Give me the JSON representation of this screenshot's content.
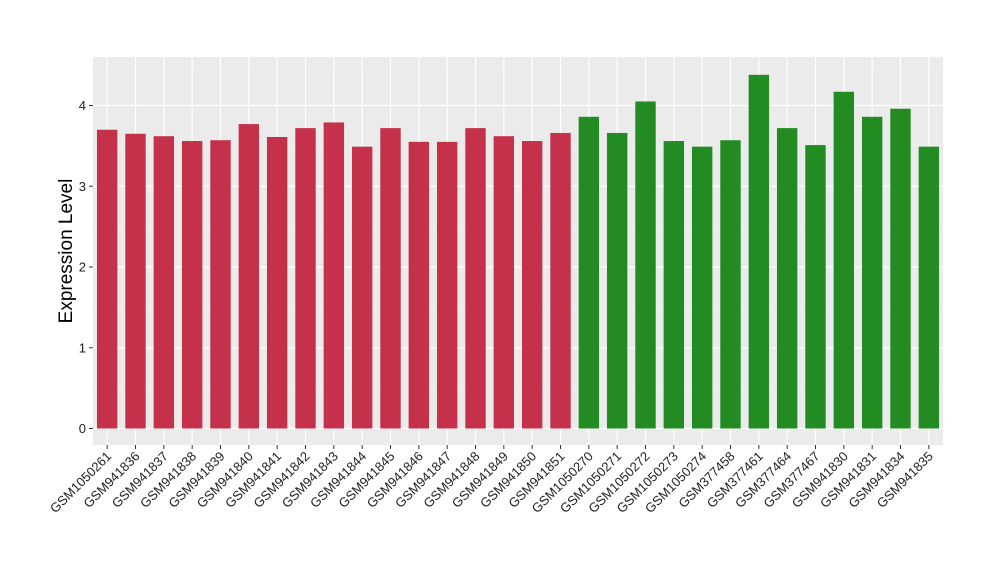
{
  "chart_data": {
    "type": "bar",
    "title": "",
    "xlabel": "",
    "ylabel": "Expression Level",
    "ylim": [
      0,
      4.6
    ],
    "yticks": [
      0,
      1,
      2,
      3,
      4
    ],
    "grid": true,
    "legend": "none",
    "categories": [
      "GSM1050261",
      "GSM941836",
      "GSM941837",
      "GSM941838",
      "GSM941839",
      "GSM941840",
      "GSM941841",
      "GSM941842",
      "GSM941843",
      "GSM941844",
      "GSM941845",
      "GSM941846",
      "GSM941847",
      "GSM941848",
      "GSM941849",
      "GSM941850",
      "GSM941851",
      "GSM1050270",
      "GSM1050271",
      "GSM1050272",
      "GSM1050273",
      "GSM1050274",
      "GSM377458",
      "GSM377461",
      "GSM377464",
      "GSM377467",
      "GSM941830",
      "GSM941831",
      "GSM941834",
      "GSM941835"
    ],
    "values": [
      3.7,
      3.65,
      3.62,
      3.56,
      3.57,
      3.77,
      3.61,
      3.72,
      3.79,
      3.49,
      3.72,
      3.55,
      3.55,
      3.72,
      3.62,
      3.56,
      3.66,
      3.86,
      3.66,
      4.05,
      3.56,
      3.49,
      3.57,
      4.38,
      3.72,
      3.51,
      4.17,
      3.86,
      3.96,
      3.49
    ],
    "group_sizes": [
      17,
      13
    ],
    "colors": [
      "#c5314b",
      "#228b22"
    ],
    "panel_background": "#ebebeb"
  }
}
